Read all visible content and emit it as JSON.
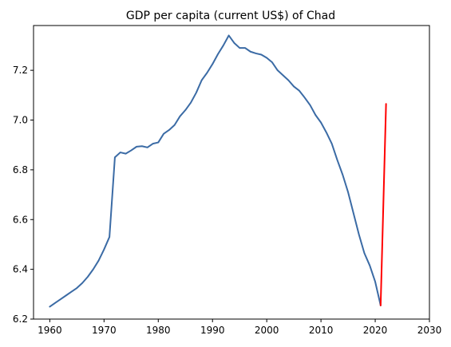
{
  "chart_data": {
    "type": "line",
    "title": "GDP per capita (current US$) of Chad",
    "xlabel": "",
    "ylabel": "",
    "xlim": [
      1957,
      2030
    ],
    "ylim": [
      6.2,
      7.38
    ],
    "xticks": [
      1960,
      1970,
      1980,
      1990,
      2000,
      2010,
      2020,
      2030
    ],
    "yticks": [
      6.2,
      6.4,
      6.6,
      6.8,
      7.0,
      7.2
    ],
    "ytick_labels": [
      "6.2",
      "6.4",
      "6.6",
      "6.8",
      "7.0",
      "7.2"
    ],
    "grid": false,
    "legend": "none",
    "series": [
      {
        "color": "#3b6ba5",
        "x": [
          1960,
          1961,
          1962,
          1963,
          1964,
          1965,
          1966,
          1967,
          1968,
          1969,
          1970,
          1971,
          1972,
          1973,
          1974,
          1975,
          1976,
          1977,
          1978,
          1979,
          1980,
          1981,
          1982,
          1983,
          1984,
          1985,
          1986,
          1987,
          1988,
          1989,
          1990,
          1991,
          1992,
          1993,
          1994,
          1995,
          1996,
          1997,
          1998,
          1999,
          2000,
          2001,
          2002,
          2003,
          2004,
          2005,
          2006,
          2007,
          2008,
          2009,
          2010,
          2011,
          2012,
          2013,
          2014,
          2015,
          2016,
          2017,
          2018,
          2019,
          2020,
          2021
        ],
        "values": [
          6.25,
          6.265,
          6.28,
          6.295,
          6.31,
          6.325,
          6.345,
          6.37,
          6.4,
          6.435,
          6.48,
          6.53,
          6.85,
          6.87,
          6.865,
          6.878,
          6.893,
          6.895,
          6.89,
          6.905,
          6.91,
          6.945,
          6.96,
          6.98,
          7.015,
          7.04,
          7.07,
          7.11,
          7.16,
          7.19,
          7.225,
          7.265,
          7.3,
          7.34,
          7.31,
          7.29,
          7.29,
          7.275,
          7.268,
          7.263,
          7.25,
          7.232,
          7.2,
          7.18,
          7.16,
          7.135,
          7.118,
          7.09,
          7.06,
          7.02,
          6.99,
          6.95,
          6.905,
          6.84,
          6.78,
          6.71,
          6.625,
          6.54,
          6.465,
          6.415,
          6.35,
          6.255
        ]
      },
      {
        "color": "#ff0000",
        "x": [
          2021,
          2022
        ],
        "values": [
          6.255,
          7.065
        ]
      }
    ]
  }
}
